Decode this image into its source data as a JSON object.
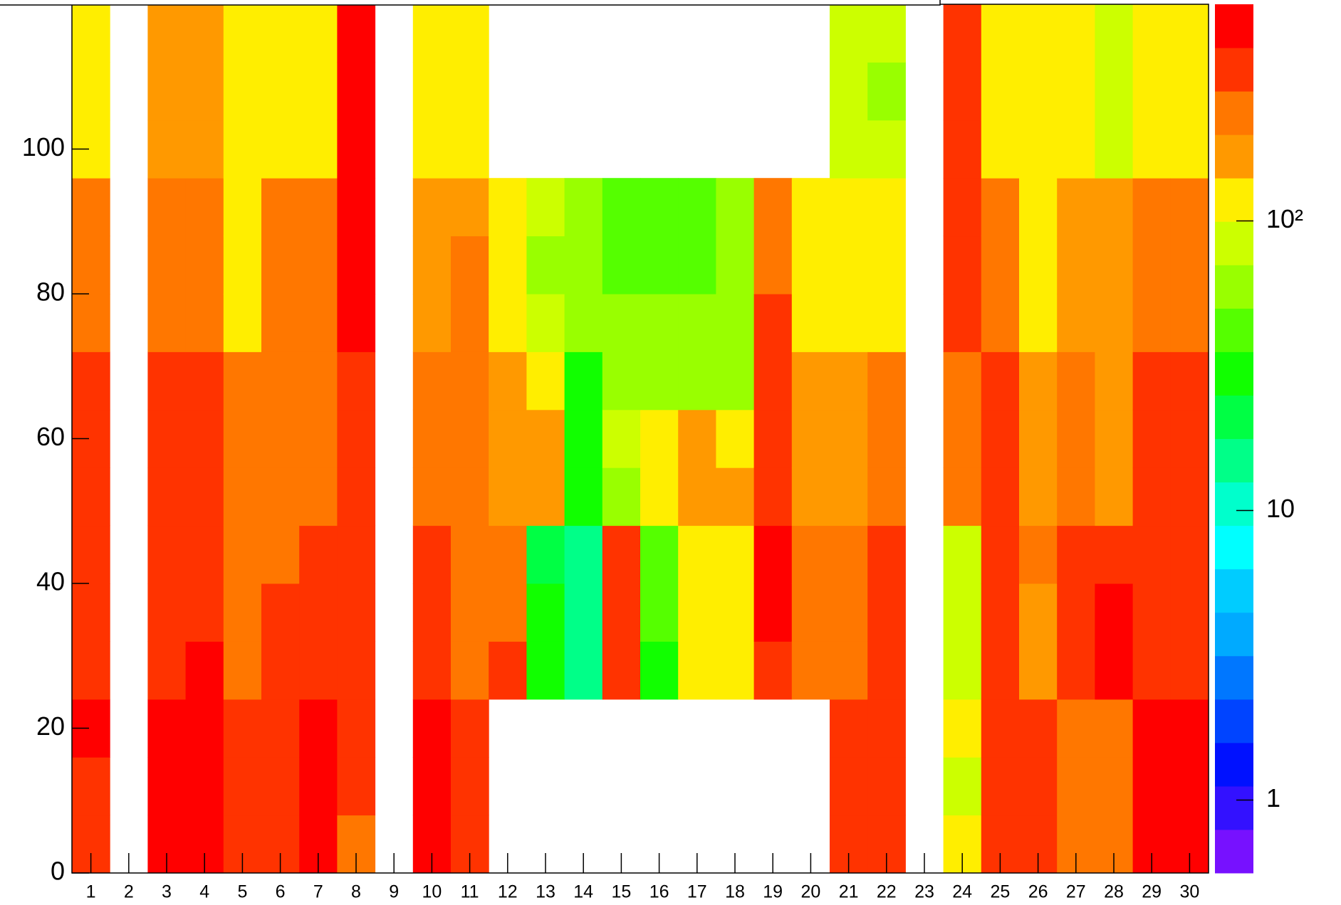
{
  "chart_data": {
    "type": "heatmap",
    "x": [
      1,
      2,
      3,
      4,
      5,
      6,
      7,
      8,
      9,
      10,
      11,
      12,
      13,
      14,
      15,
      16,
      17,
      18,
      19,
      20,
      21,
      22,
      23,
      24,
      25,
      26,
      27,
      28,
      29,
      30
    ],
    "xlim": [
      0.5,
      30.5
    ],
    "xticks": [
      1,
      2,
      3,
      4,
      5,
      6,
      7,
      8,
      9,
      10,
      11,
      12,
      13,
      14,
      15,
      16,
      17,
      18,
      19,
      20,
      21,
      22,
      23,
      24,
      25,
      26,
      27,
      28,
      29,
      30
    ],
    "ybins": [
      0,
      8,
      16,
      24,
      32,
      40,
      48,
      56,
      64,
      72,
      80,
      88,
      96,
      104,
      112,
      120
    ],
    "ylim": [
      0,
      120
    ],
    "yticks": [
      0,
      20,
      40,
      60,
      80,
      100
    ],
    "zlim": [
      0.56,
      560
    ],
    "zlog": true,
    "zticks": [
      1,
      10,
      {
        "value": 100,
        "label": "10²"
      }
    ],
    "palette": [
      "#7711ff",
      "#3311ff",
      "#0011ff",
      "#0044ff",
      "#0077ff",
      "#00aaff",
      "#00ccff",
      "#00ffff",
      "#00ffcc",
      "#00ff88",
      "#00ff44",
      "#11ff00",
      "#55ff00",
      "#99ff00",
      "#ccff00",
      "#ffee00",
      "#ff9900",
      "#ff7700",
      "#ff3300",
      "#ff0000"
    ],
    "z": [
      [
        330,
        330,
        450,
        330,
        330,
        330,
        330,
        330,
        330,
        240,
        240,
        240,
        120,
        120,
        120
      ],
      [
        null,
        null,
        null,
        null,
        null,
        null,
        null,
        null,
        null,
        null,
        null,
        null,
        null,
        null,
        null
      ],
      [
        450,
        450,
        450,
        330,
        330,
        330,
        330,
        330,
        330,
        240,
        240,
        240,
        170,
        170,
        170
      ],
      [
        450,
        450,
        450,
        450,
        330,
        330,
        330,
        330,
        330,
        240,
        240,
        240,
        170,
        170,
        170
      ],
      [
        330,
        330,
        330,
        240,
        240,
        240,
        240,
        240,
        240,
        120,
        120,
        120,
        120,
        120,
        120
      ],
      [
        330,
        330,
        330,
        330,
        330,
        240,
        240,
        240,
        240,
        240,
        240,
        240,
        120,
        120,
        120
      ],
      [
        450,
        450,
        450,
        330,
        330,
        330,
        240,
        240,
        240,
        240,
        240,
        240,
        120,
        120,
        120
      ],
      [
        240,
        330,
        330,
        330,
        330,
        330,
        330,
        330,
        330,
        450,
        450,
        450,
        450,
        450,
        450
      ],
      [
        null,
        null,
        null,
        null,
        null,
        null,
        null,
        null,
        null,
        null,
        null,
        null,
        null,
        null,
        null
      ],
      [
        450,
        450,
        450,
        330,
        330,
        330,
        240,
        240,
        240,
        170,
        170,
        170,
        120,
        120,
        120
      ],
      [
        330,
        330,
        330,
        240,
        240,
        240,
        240,
        240,
        240,
        240,
        240,
        170,
        120,
        120,
        120
      ],
      [
        null,
        null,
        null,
        330,
        240,
        240,
        170,
        170,
        170,
        120,
        120,
        120,
        null,
        null,
        null
      ],
      [
        null,
        null,
        null,
        30,
        30,
        21,
        170,
        170,
        120,
        85,
        60,
        85,
        null,
        null,
        null
      ],
      [
        null,
        null,
        null,
        15,
        15,
        15,
        30,
        30,
        30,
        60,
        60,
        60,
        null,
        null,
        null
      ],
      [
        null,
        null,
        null,
        330,
        330,
        330,
        60,
        85,
        60,
        60,
        42,
        42,
        null,
        null,
        null
      ],
      [
        null,
        null,
        null,
        30,
        42,
        42,
        120,
        120,
        60,
        60,
        42,
        42,
        null,
        null,
        null
      ],
      [
        null,
        null,
        null,
        120,
        120,
        120,
        170,
        170,
        60,
        60,
        42,
        42,
        null,
        null,
        null
      ],
      [
        null,
        null,
        null,
        120,
        120,
        120,
        170,
        120,
        60,
        60,
        60,
        60,
        null,
        null,
        null
      ],
      [
        null,
        null,
        null,
        330,
        450,
        450,
        330,
        330,
        330,
        330,
        240,
        240,
        null,
        null,
        null
      ],
      [
        null,
        null,
        null,
        240,
        240,
        240,
        170,
        170,
        170,
        120,
        120,
        120,
        null,
        null,
        null
      ],
      [
        330,
        330,
        330,
        240,
        240,
        240,
        170,
        170,
        170,
        120,
        120,
        120,
        85,
        85,
        85
      ],
      [
        330,
        330,
        330,
        330,
        330,
        330,
        240,
        240,
        240,
        120,
        120,
        120,
        85,
        60,
        85
      ],
      [
        null,
        null,
        null,
        null,
        null,
        null,
        null,
        null,
        null,
        null,
        null,
        null,
        null,
        null,
        null
      ],
      [
        120,
        85,
        120,
        85,
        85,
        85,
        240,
        240,
        240,
        330,
        330,
        330,
        330,
        330,
        330
      ],
      [
        330,
        330,
        330,
        330,
        330,
        330,
        330,
        330,
        330,
        240,
        240,
        240,
        120,
        120,
        120
      ],
      [
        330,
        330,
        330,
        170,
        170,
        240,
        170,
        170,
        170,
        120,
        120,
        120,
        120,
        120,
        120
      ],
      [
        240,
        240,
        240,
        330,
        330,
        330,
        240,
        240,
        240,
        170,
        170,
        170,
        120,
        120,
        120
      ],
      [
        240,
        240,
        240,
        450,
        450,
        330,
        170,
        170,
        170,
        170,
        170,
        170,
        85,
        85,
        85
      ],
      [
        450,
        450,
        450,
        330,
        330,
        330,
        330,
        330,
        330,
        240,
        240,
        240,
        120,
        120,
        120
      ],
      [
        450,
        450,
        450,
        330,
        330,
        330,
        330,
        330,
        330,
        240,
        240,
        240,
        120,
        120,
        120
      ]
    ]
  }
}
